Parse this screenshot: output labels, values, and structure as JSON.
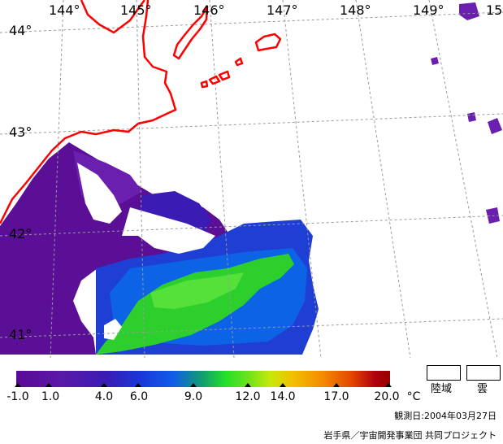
{
  "map": {
    "longitude_labels": [
      "144°",
      "145°",
      "146°",
      "147°",
      "148°",
      "149°",
      "15"
    ],
    "latitude_labels": [
      "44°",
      "43°",
      "42°",
      "41°"
    ],
    "colors": {
      "coastline": "#ff0000",
      "grid": "#9a9a9a",
      "land_cloud_mask": "#ffffff"
    }
  },
  "colorbar": {
    "tick_labels": [
      "-1.0",
      "1.0",
      "4.0",
      "6.0",
      "9.0",
      "12.0",
      "14.0",
      "17.0",
      "20.0"
    ],
    "unit": "°C"
  },
  "legend": {
    "land_label": "陸域",
    "cloud_label": "雲"
  },
  "footer": {
    "observation_date": "観測日:2004年03月27日",
    "credit": "岩手県／宇宙開発事業団 共同プロジェクト"
  }
}
